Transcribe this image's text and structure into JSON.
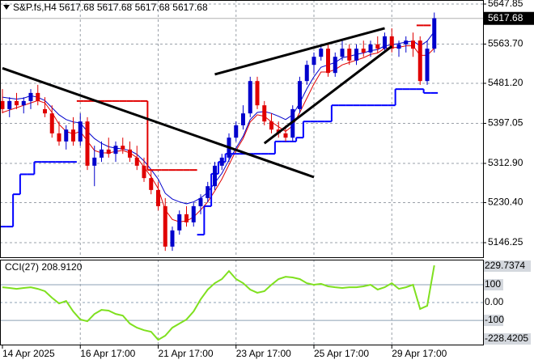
{
  "chart_data": [
    {
      "type": "candlestick",
      "title": "S&P.fs,H4  5617.68 5617.68 5617.68 5617.68",
      "categories": [
        "14 Apr 2025",
        null,
        null,
        null,
        null,
        null,
        null,
        null,
        null,
        null,
        null,
        "16 Apr 17:00",
        null,
        null,
        null,
        null,
        null,
        null,
        null,
        null,
        null,
        null,
        "21 Apr 17:00",
        null,
        null,
        null,
        null,
        null,
        null,
        null,
        null,
        null,
        null,
        "23 Apr 17:00",
        null,
        null,
        null,
        null,
        null,
        null,
        null,
        null,
        null,
        null,
        "25 Apr 17:00",
        null,
        null,
        null,
        null,
        null,
        null,
        null,
        null,
        null,
        null,
        "29 Apr 17:00",
        null,
        null,
        null,
        null,
        null,
        null
      ],
      "open": [
        5444,
        5427,
        5444,
        5435,
        5444,
        5461,
        5427,
        5418,
        5376,
        5359,
        5384,
        5359,
        5401,
        5308,
        5325,
        5342,
        5333,
        5350,
        5342,
        5325,
        5308,
        5282,
        5257,
        5223,
        5138,
        5172,
        5206,
        5189,
        5223,
        5240,
        5265,
        5308,
        5325,
        5367,
        5393,
        5418,
        5486,
        5435,
        5401,
        5384,
        5376,
        5367,
        5427,
        5486,
        5520,
        5537,
        5554,
        5503,
        5537,
        5554,
        5529,
        5554,
        5546,
        5563,
        5554,
        5580,
        5554,
        5563,
        5571,
        5571,
        5486,
        5554
      ],
      "high": [
        5469,
        5452,
        5461,
        5452,
        5469,
        5478,
        5452,
        5435,
        5401,
        5393,
        5410,
        5418,
        5410,
        5350,
        5359,
        5367,
        5359,
        5367,
        5359,
        5350,
        5325,
        5299,
        5274,
        5240,
        5180,
        5214,
        5223,
        5231,
        5248,
        5274,
        5316,
        5333,
        5376,
        5401,
        5435,
        5495,
        5495,
        5444,
        5418,
        5401,
        5393,
        5435,
        5495,
        5529,
        5546,
        5563,
        5563,
        5546,
        5571,
        5563,
        5563,
        5571,
        5571,
        5580,
        5588,
        5597,
        5571,
        5580,
        5588,
        5580,
        5571,
        5630
      ],
      "low": [
        5418,
        5410,
        5427,
        5418,
        5427,
        5435,
        5410,
        5367,
        5350,
        5342,
        5350,
        5350,
        5299,
        5265,
        5316,
        5325,
        5316,
        5333,
        5316,
        5299,
        5274,
        5248,
        5214,
        5129,
        5129,
        5163,
        5180,
        5180,
        5206,
        5231,
        5257,
        5299,
        5316,
        5359,
        5384,
        5410,
        5427,
        5393,
        5376,
        5367,
        5359,
        5359,
        5418,
        5478,
        5503,
        5529,
        5495,
        5495,
        5529,
        5520,
        5520,
        5537,
        5537,
        5546,
        5546,
        5546,
        5537,
        5546,
        5537,
        5478,
        5478,
        5546
      ],
      "close": [
        5427,
        5444,
        5435,
        5444,
        5461,
        5444,
        5418,
        5376,
        5359,
        5384,
        5359,
        5401,
        5308,
        5325,
        5342,
        5333,
        5350,
        5342,
        5325,
        5308,
        5282,
        5257,
        5223,
        5138,
        5172,
        5206,
        5189,
        5223,
        5240,
        5265,
        5308,
        5325,
        5367,
        5393,
        5418,
        5486,
        5435,
        5401,
        5384,
        5376,
        5367,
        5427,
        5486,
        5520,
        5537,
        5554,
        5503,
        5537,
        5554,
        5529,
        5554,
        5546,
        5563,
        5554,
        5580,
        5554,
        5563,
        5571,
        5554,
        5486,
        5554,
        5618
      ],
      "up_color": "#0000cc",
      "down_color": "#e00000",
      "last_price": 5617.68,
      "ylim": [
        5115.65,
        5656.35
      ],
      "yticks": [
        5647.85,
        {
          "value": 5563.7,
          "label": "5563.70"
        },
        {
          "value": 5481.2,
          "label": "5481.20"
        },
        5397.05,
        {
          "value": 5312.9,
          "label": "5312.90"
        },
        {
          "value": 5230.4,
          "label": "5230.40"
        },
        5146.25
      ],
      "grid": true,
      "lines": [
        {
          "color": "#e00000",
          "width": 1,
          "style": "line",
          "values": [
            5420,
            5425,
            5430,
            5435,
            5440,
            5445,
            5440,
            5420,
            5395,
            5380,
            5375,
            5380,
            5360,
            5340,
            5335,
            5335,
            5338,
            5340,
            5335,
            5325,
            5305,
            5285,
            5260,
            5215,
            5195,
            5190,
            5192,
            5200,
            5215,
            5232,
            5255,
            5280,
            5310,
            5340,
            5365,
            5400,
            5415,
            5412,
            5400,
            5390,
            5380,
            5392,
            5420,
            5450,
            5480,
            5505,
            5505,
            5510,
            5520,
            5525,
            5530,
            5535,
            5542,
            5545,
            5555,
            5556,
            5557,
            5560,
            5560,
            5540,
            5540,
            5555
          ]
        },
        {
          "color": "#0000cc",
          "width": 1,
          "style": "line",
          "values": [
            5452,
            5450,
            5448,
            5450,
            5455,
            5452,
            5445,
            5430,
            5415,
            5405,
            5400,
            5398,
            5380,
            5365,
            5355,
            5348,
            5345,
            5343,
            5340,
            5332,
            5318,
            5300,
            5280,
            5250,
            5238,
            5232,
            5228,
            5232,
            5240,
            5252,
            5272,
            5292,
            5320,
            5345,
            5370,
            5405,
            5420,
            5422,
            5418,
            5412,
            5405,
            5415,
            5440,
            5470,
            5495,
            5515,
            5520,
            5525,
            5535,
            5538,
            5542,
            5545,
            5550,
            5552,
            5560,
            5562,
            5565,
            5568,
            5570,
            5560,
            5570,
            5590
          ]
        },
        {
          "color": "#e00000",
          "width": 2,
          "style": "step",
          "values": [
            null,
            null,
            null,
            null,
            null,
            null,
            null,
            null,
            null,
            null,
            null,
            5444,
            5444,
            5444,
            5444,
            5444,
            5444,
            5444,
            5444,
            5444,
            5444,
            5299,
            5299,
            5299,
            5299,
            5299,
            5299,
            5299,
            null,
            null,
            null,
            null,
            null,
            null,
            null,
            null,
            null,
            null,
            null,
            null,
            null,
            null,
            null,
            null,
            null,
            null,
            null,
            null,
            null,
            null,
            null,
            null,
            null,
            null,
            null,
            null,
            null,
            null,
            null,
            5603,
            5603,
            null
          ]
        },
        {
          "color": "#0000ff",
          "width": 2,
          "style": "step",
          "values": [
            5180,
            5180,
            5248,
            5290,
            5290,
            5316,
            5316,
            5316,
            5316,
            5316,
            5316,
            null,
            null,
            null,
            null,
            null,
            null,
            null,
            null,
            null,
            null,
            null,
            null,
            null,
            null,
            null,
            null,
            null,
            5163,
            5223,
            5291,
            5316,
            5333,
            5333,
            5333,
            5333,
            5333,
            5333,
            5333,
            5359,
            5359,
            5359,
            5367,
            5401,
            5401,
            5401,
            5401,
            5435,
            5435,
            5435,
            5435,
            5435,
            5435,
            5435,
            5435,
            5435,
            5469,
            5469,
            5469,
            5469,
            5461,
            5461
          ]
        }
      ],
      "trendlines": [
        {
          "color": "#000000",
          "x": [
            0,
            44
          ],
          "values": [
            5513,
            5284
          ]
        },
        {
          "color": "#000000",
          "x": [
            30,
            54
          ],
          "values": [
            5500,
            5597
          ]
        },
        {
          "color": "#000000",
          "x": [
            37,
            55
          ],
          "values": [
            5355,
            5559
          ]
        }
      ]
    },
    {
      "type": "line",
      "title": "CCI(27) 208.9120",
      "color": "#7fe01f",
      "values": [
        86,
        82,
        77,
        82,
        86,
        77,
        64,
        27,
        -5,
        9,
        -50,
        -95,
        -105,
        -64,
        -41,
        -45,
        -64,
        -73,
        -118,
        -141,
        -155,
        -164,
        -209,
        -186,
        -141,
        -118,
        -95,
        -50,
        18,
        73,
        109,
        132,
        177,
        132,
        109,
        73,
        55,
        64,
        100,
        132,
        145,
        141,
        132,
        109,
        100,
        105,
        91,
        86,
        82,
        86,
        86,
        91,
        100,
        73,
        86,
        109,
        77,
        86,
        100,
        -36,
        -18,
        209
      ],
      "ylim": [
        -236,
        241
      ],
      "yticks": [
        229.7374,
        100,
        {
          "value": 0,
          "label": "0.00"
        },
        -100,
        -228.4205
      ]
    }
  ]
}
